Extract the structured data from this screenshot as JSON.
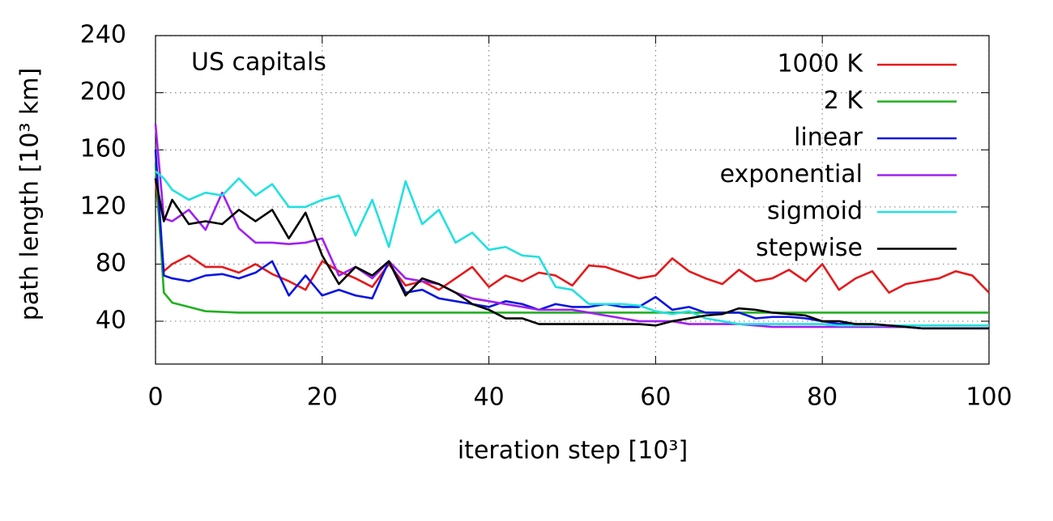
{
  "chart_data": {
    "type": "line",
    "title": "US capitals",
    "xlabel": "iteration step [10³]",
    "ylabel": "path length [10³ km]",
    "xlim": [
      0,
      100
    ],
    "xticks": [
      0,
      20,
      40,
      60,
      80,
      100
    ],
    "ylim": [
      10,
      240
    ],
    "yticks": [
      40,
      80,
      120,
      160,
      200,
      240
    ],
    "grid": true,
    "legend": "upper right",
    "x": [
      0,
      1,
      2,
      4,
      6,
      8,
      10,
      12,
      14,
      16,
      18,
      20,
      22,
      24,
      26,
      28,
      30,
      32,
      34,
      36,
      38,
      40,
      42,
      44,
      46,
      48,
      50,
      52,
      54,
      56,
      58,
      60,
      62,
      64,
      66,
      68,
      70,
      72,
      74,
      76,
      78,
      80,
      82,
      84,
      86,
      88,
      90,
      92,
      94,
      96,
      98,
      100
    ],
    "series": [
      {
        "name": "1000 K",
        "color": "#e41a1c",
        "values": [
          140,
          75,
          80,
          86,
          78,
          78,
          74,
          80,
          73,
          68,
          62,
          82,
          75,
          70,
          64,
          80,
          65,
          68,
          62,
          70,
          78,
          64,
          72,
          68,
          74,
          72,
          65,
          79,
          78,
          74,
          70,
          72,
          84,
          75,
          70,
          66,
          76,
          68,
          70,
          76,
          68,
          80,
          62,
          70,
          75,
          60,
          66,
          68,
          70,
          75,
          72,
          60
        ]
      },
      {
        "name": "2 K",
        "color": "#22b022",
        "values": [
          150,
          60,
          53,
          50,
          47,
          46.5,
          46,
          46,
          46,
          46,
          46,
          46,
          46,
          46,
          46,
          46,
          46,
          46,
          46,
          46,
          46,
          46,
          46,
          46,
          46,
          46,
          46,
          46,
          46,
          46,
          46,
          46,
          46,
          46,
          46,
          46,
          46,
          46,
          46,
          46,
          46,
          46,
          46,
          46,
          46,
          46,
          46,
          46,
          46,
          46,
          46,
          46
        ]
      },
      {
        "name": "linear",
        "color": "#0a16e0",
        "values": [
          160,
          72,
          70,
          68,
          72,
          73,
          70,
          74,
          82,
          58,
          72,
          58,
          62,
          58,
          56,
          82,
          60,
          62,
          56,
          54,
          52,
          50,
          54,
          52,
          48,
          52,
          50,
          50,
          52,
          50,
          50,
          57,
          48,
          50,
          46,
          46,
          46,
          42,
          43,
          43,
          42,
          40,
          38,
          38,
          37,
          36,
          36,
          35,
          35,
          35,
          35,
          35
        ]
      },
      {
        "name": "exponential",
        "color": "#a020f0",
        "values": [
          178,
          112,
          110,
          118,
          104,
          130,
          105,
          95,
          95,
          94,
          95,
          98,
          72,
          78,
          70,
          82,
          70,
          68,
          66,
          60,
          56,
          54,
          52,
          50,
          48,
          48,
          48,
          46,
          44,
          42,
          40,
          40,
          40,
          38,
          38,
          38,
          38,
          37,
          36,
          36,
          36,
          36,
          36,
          36,
          36,
          36,
          36,
          35,
          35,
          35,
          35,
          35
        ]
      },
      {
        "name": "sigmoid",
        "color": "#22e0e0",
        "values": [
          145,
          140,
          132,
          125,
          130,
          128,
          140,
          128,
          136,
          120,
          120,
          125,
          128,
          100,
          125,
          92,
          138,
          108,
          118,
          95,
          102,
          90,
          92,
          86,
          85,
          64,
          62,
          52,
          52,
          52,
          51,
          47,
          45,
          47,
          42,
          40,
          38,
          38,
          38,
          38,
          38,
          38,
          37,
          37,
          37,
          37,
          37,
          37,
          37,
          37,
          37,
          37
        ]
      },
      {
        "name": "stepwise",
        "color": "#000000",
        "values": [
          140,
          110,
          125,
          108,
          110,
          108,
          118,
          110,
          118,
          98,
          116,
          86,
          66,
          78,
          72,
          82,
          58,
          70,
          66,
          60,
          52,
          48,
          42,
          42,
          38,
          38,
          38,
          38,
          38,
          38,
          38,
          37,
          40,
          42,
          44,
          45,
          49,
          48,
          46,
          45,
          44,
          40,
          40,
          38,
          38,
          37,
          36,
          35,
          35,
          35,
          35,
          35
        ]
      }
    ]
  }
}
